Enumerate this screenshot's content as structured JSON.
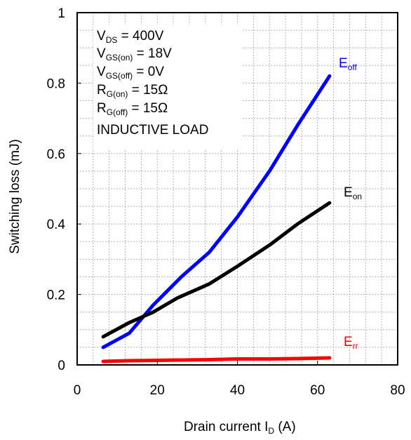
{
  "chart_data": {
    "type": "line",
    "xlabel": {
      "main": "Drain current I",
      "sub": "D",
      "tail": " (A)"
    },
    "ylabel": "Switching loss (mJ)",
    "xlim": [
      0,
      80
    ],
    "ylim": [
      0,
      1
    ],
    "xticks": [
      "0",
      "20",
      "40",
      "60",
      "80"
    ],
    "yticks": [
      "0",
      "0.2",
      "0.4",
      "0.6",
      "0.8",
      "1"
    ],
    "grid": true,
    "conditions": [
      {
        "main": "V",
        "sub": "DS",
        "tail": " = 400V"
      },
      {
        "main": "V",
        "sub": "GS(on)",
        "tail": " = 18V"
      },
      {
        "main": "V",
        "sub": "GS(off)",
        "tail": " = 0V"
      },
      {
        "main": "R",
        "sub": "G(on)",
        "tail": " = 15Ω"
      },
      {
        "main": "R",
        "sub": "G(off)",
        "tail": " = 15Ω"
      },
      {
        "main": "INDUCTIVE LOAD",
        "sub": "",
        "tail": ""
      }
    ],
    "series": [
      {
        "name": "Eoff",
        "label_main": "E",
        "label_sub": "off",
        "color": "#0000ff",
        "x": [
          6.5,
          13,
          19,
          26,
          33,
          40,
          48,
          55,
          63
        ],
        "y": [
          0.05,
          0.09,
          0.17,
          0.25,
          0.32,
          0.42,
          0.55,
          0.68,
          0.82
        ]
      },
      {
        "name": "Eon",
        "label_main": "E",
        "label_sub": "on",
        "color": "#000000",
        "x": [
          6.5,
          13,
          19,
          25,
          33,
          40,
          48,
          55,
          63
        ],
        "y": [
          0.08,
          0.12,
          0.15,
          0.19,
          0.23,
          0.28,
          0.34,
          0.4,
          0.46
        ]
      },
      {
        "name": "Err",
        "label_main": "E",
        "label_sub": "rr",
        "color": "#ff0000",
        "x": [
          6.5,
          13,
          20,
          33,
          40,
          48,
          55,
          63
        ],
        "y": [
          0.01,
          0.012,
          0.013,
          0.015,
          0.017,
          0.017,
          0.018,
          0.02
        ]
      }
    ]
  }
}
